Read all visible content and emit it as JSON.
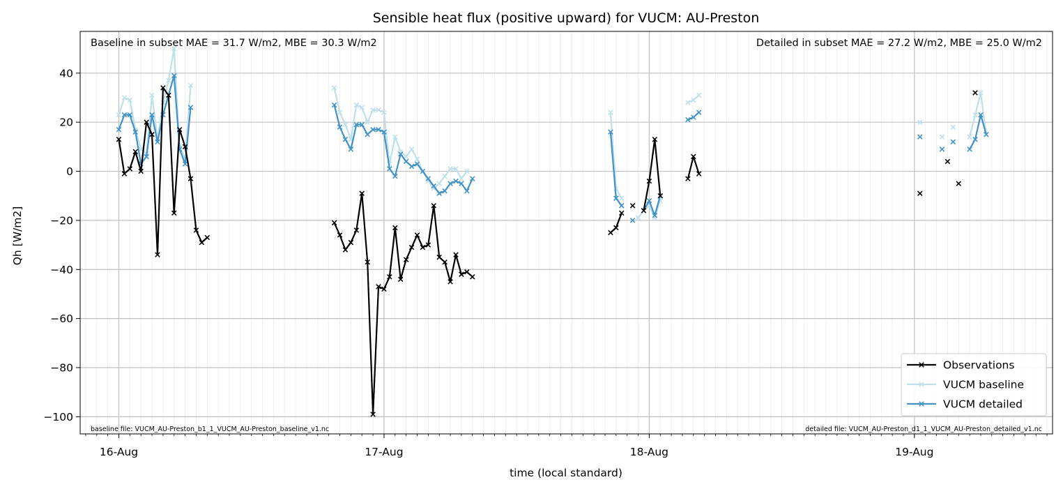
{
  "chart_data": {
    "type": "line",
    "title": "Sensible heat flux (positive upward) for VUCM: AU-Preston",
    "xlabel": "time (local standard)",
    "ylabel": "Qh [W/m2]",
    "ylim": [
      -107,
      57
    ],
    "xlim": [
      "2012-08-15 20:30",
      "2012-08-19 12:30"
    ],
    "time_step_minutes": 30,
    "grid": true,
    "legend_position": "lower right",
    "x_ticks": [
      {
        "value": "2012-08-16 00:00",
        "label": "16-Aug"
      },
      {
        "value": "2012-08-17 00:00",
        "label": "17-Aug"
      },
      {
        "value": "2012-08-18 00:00",
        "label": "18-Aug"
      },
      {
        "value": "2012-08-19 00:00",
        "label": "19-Aug"
      }
    ],
    "y_ticks": [
      {
        "value": 40,
        "label": "40"
      },
      {
        "value": 20,
        "label": "20"
      },
      {
        "value": 0,
        "label": "0"
      },
      {
        "value": -20,
        "label": "−20"
      },
      {
        "value": -40,
        "label": "−40"
      },
      {
        "value": -60,
        "label": "−60"
      },
      {
        "value": -80,
        "label": "−80"
      },
      {
        "value": -100,
        "label": "−100"
      }
    ],
    "annotations": {
      "baseline_stats": "Baseline in subset MAE = 31.7 W/m2, MBE = 30.3 W/m2",
      "detailed_stats": "Detailed in subset MAE = 27.2 W/m2, MBE = 25.0 W/m2",
      "baseline_file": "baseline file: VUCM_AU-Preston_b1_1_VUCM_AU-Preston_baseline_v1.nc",
      "detailed_file": "detailed file: VUCM_AU-Preston_d1_1_VUCM_AU-Preston_detailed_v1.nc"
    },
    "series": [
      {
        "name": "Observations",
        "color": "#000000",
        "x": [
          "2012-08-16 00:00",
          "2012-08-16 00:30",
          "2012-08-16 01:00",
          "2012-08-16 01:30",
          "2012-08-16 02:00",
          "2012-08-16 02:30",
          "2012-08-16 03:00",
          "2012-08-16 03:30",
          "2012-08-16 04:00",
          "2012-08-16 04:30",
          "2012-08-16 05:00",
          "2012-08-16 05:30",
          "2012-08-16 06:00",
          "2012-08-16 06:30",
          "2012-08-16 07:00",
          "2012-08-16 07:30",
          "2012-08-16 08:00",
          "2012-08-16 19:30",
          "2012-08-16 20:00",
          "2012-08-16 20:30",
          "2012-08-16 21:00",
          "2012-08-16 21:30",
          "2012-08-16 22:00",
          "2012-08-16 22:30",
          "2012-08-16 23:00",
          "2012-08-16 23:30",
          "2012-08-17 00:00",
          "2012-08-17 00:30",
          "2012-08-17 01:00",
          "2012-08-17 01:30",
          "2012-08-17 02:00",
          "2012-08-17 02:30",
          "2012-08-17 03:00",
          "2012-08-17 03:30",
          "2012-08-17 04:00",
          "2012-08-17 04:30",
          "2012-08-17 05:00",
          "2012-08-17 05:30",
          "2012-08-17 06:00",
          "2012-08-17 06:30",
          "2012-08-17 07:00",
          "2012-08-17 07:30",
          "2012-08-17 08:00",
          "2012-08-17 20:30",
          "2012-08-17 21:00",
          "2012-08-17 21:30",
          "2012-08-17 22:30",
          "2012-08-17 23:30",
          "2012-08-18 00:00",
          "2012-08-18 00:30",
          "2012-08-18 01:00",
          "2012-08-18 03:30",
          "2012-08-18 04:00",
          "2012-08-18 04:30",
          "2012-08-19 00:30",
          "2012-08-19 03:00",
          "2012-08-19 04:00",
          "2012-08-19 05:30",
          "2012-08-19 06:00",
          "2012-08-19 06:30",
          "2012-08-19 07:00"
        ],
        "y": [
          13,
          -1,
          1,
          8,
          0,
          20,
          15,
          -34,
          34,
          31,
          -17,
          17,
          10,
          -3,
          null,
          null,
          null,
          -24,
          -29,
          -27,
          -21,
          -26,
          -32,
          -29,
          -24,
          -9,
          -37,
          -99,
          -47,
          -48,
          -43,
          -23,
          -44,
          -36,
          -31,
          -26,
          -31,
          -30,
          -14,
          -35,
          -37,
          -45,
          -34,
          -42,
          -41,
          -43,
          -25,
          -23,
          -17,
          -14,
          -16,
          -4,
          13,
          -10,
          -3,
          6,
          -1,
          -9,
          4,
          -5,
          32
        ],
        "segments": "connected only between consecutive half-hours"
      },
      {
        "name": "VUCM baseline",
        "color": "#bfe0ea",
        "y_by_time": {
          "2012-08-16 00:00": 23,
          "2012-08-16 00:30": 30,
          "2012-08-16 01:00": 29,
          "2012-08-16 01:30": 17,
          "2012-08-16 02:00": 9,
          "2012-08-16 02:30": 7,
          "2012-08-16 03:00": 31,
          "2012-08-16 03:30": 13,
          "2012-08-16 04:00": 28,
          "2012-08-16 04:30": 37,
          "2012-08-16 05:00": 50,
          "2012-08-16 05:30": 10,
          "2012-08-16 06:00": 5,
          "2012-08-16 06:30": 35,
          "2012-08-16 19:30": 34,
          "2012-08-16 20:00": 24,
          "2012-08-16 20:30": 19,
          "2012-08-16 21:00": 13,
          "2012-08-16 21:30": 27,
          "2012-08-16 22:00": 26,
          "2012-08-16 22:30": 20,
          "2012-08-16 23:00": 25,
          "2012-08-16 23:30": 25,
          "2012-08-17 00:00": 24,
          "2012-08-17 00:30": 3,
          "2012-08-17 01:00": 14,
          "2012-08-17 01:30": 8,
          "2012-08-17 02:00": 6,
          "2012-08-17 02:30": 9,
          "2012-08-17 03:00": 5,
          "2012-08-17 03:30": 0,
          "2012-08-17 04:00": -4,
          "2012-08-17 04:30": -7,
          "2012-08-17 05:00": -5,
          "2012-08-17 05:30": -2,
          "2012-08-17 06:00": 1,
          "2012-08-17 06:30": 1,
          "2012-08-17 07:00": -3,
          "2012-08-17 07:30": 0,
          "2012-08-17 20:30": 24,
          "2012-08-17 21:00": -7,
          "2012-08-17 21:30": -11,
          "2012-08-17 23:00": -19,
          "2012-08-17 23:30": -16,
          "2012-08-18 00:00": -14,
          "2012-08-18 00:30": -19,
          "2012-08-18 01:00": -12,
          "2012-08-18 03:30": 28,
          "2012-08-18 04:00": 29,
          "2012-08-18 04:30": 31,
          "2012-08-19 00:30": 20,
          "2012-08-19 02:30": 14,
          "2012-08-19 03:30": 18,
          "2012-08-19 05:00": 14,
          "2012-08-19 05:30": 23,
          "2012-08-19 06:00": 32,
          "2012-08-19 06:30": 15
        }
      },
      {
        "name": "VUCM detailed",
        "color": "#4292c6",
        "y_by_time": {
          "2012-08-16 00:00": 17,
          "2012-08-16 00:30": 23,
          "2012-08-16 01:00": 23,
          "2012-08-16 01:30": 16,
          "2012-08-16 02:00": 3,
          "2012-08-16 02:30": 6,
          "2012-08-16 03:00": 23,
          "2012-08-16 03:30": 12,
          "2012-08-16 04:00": 23,
          "2012-08-16 04:30": 31,
          "2012-08-16 05:00": 39,
          "2012-08-16 05:30": 9,
          "2012-08-16 06:00": 3,
          "2012-08-16 06:30": 26,
          "2012-08-16 19:30": 27,
          "2012-08-16 20:00": 18,
          "2012-08-16 20:30": 13,
          "2012-08-16 21:00": 9,
          "2012-08-16 21:30": 19,
          "2012-08-16 22:00": 19,
          "2012-08-16 22:30": 15,
          "2012-08-16 23:00": 17,
          "2012-08-16 23:30": 17,
          "2012-08-17 00:00": 16,
          "2012-08-17 00:30": 1,
          "2012-08-17 01:00": -2,
          "2012-08-17 01:30": 7,
          "2012-08-17 02:00": 4,
          "2012-08-17 02:30": 2,
          "2012-08-17 03:00": 3,
          "2012-08-17 03:30": 0,
          "2012-08-17 04:00": -3,
          "2012-08-17 04:30": -6,
          "2012-08-17 05:00": -9,
          "2012-08-17 05:30": -8,
          "2012-08-17 06:00": -5,
          "2012-08-17 06:30": -4,
          "2012-08-17 07:00": -5,
          "2012-08-17 07:30": -8,
          "2012-08-17 08:00": -3,
          "2012-08-17 20:30": 16,
          "2012-08-17 21:00": -11,
          "2012-08-17 21:30": -14,
          "2012-08-17 22:30": -20,
          "2012-08-17 23:30": -16,
          "2012-08-18 00:00": -12,
          "2012-08-18 00:30": -18,
          "2012-08-18 01:00": -10,
          "2012-08-18 03:30": 21,
          "2012-08-18 04:00": 22,
          "2012-08-18 04:30": 24,
          "2012-08-19 00:30": 14,
          "2012-08-19 02:30": 9,
          "2012-08-19 03:30": 12,
          "2012-08-19 05:00": 9,
          "2012-08-19 05:30": 13,
          "2012-08-19 06:00": 23,
          "2012-08-19 06:30": 15
        }
      }
    ]
  }
}
